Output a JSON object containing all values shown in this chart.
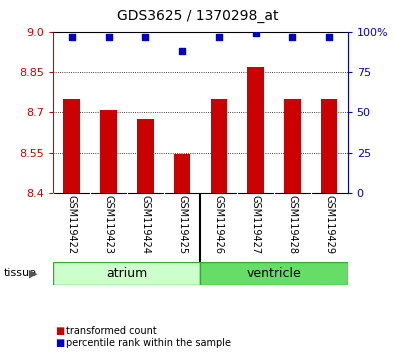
{
  "title": "GDS3625 / 1370298_at",
  "categories": [
    "GSM119422",
    "GSM119423",
    "GSM119424",
    "GSM119425",
    "GSM119426",
    "GSM119427",
    "GSM119428",
    "GSM119429"
  ],
  "bar_values": [
    8.75,
    8.71,
    8.675,
    8.545,
    8.75,
    8.87,
    8.75,
    8.75
  ],
  "percentile_values": [
    97,
    97,
    97,
    88,
    97,
    99,
    97,
    97
  ],
  "ylim_left": [
    8.4,
    9.0
  ],
  "ylim_right": [
    0,
    100
  ],
  "yticks_left": [
    8.4,
    8.55,
    8.7,
    8.85,
    9.0
  ],
  "yticks_right": [
    0,
    25,
    50,
    75,
    100
  ],
  "bar_color": "#cc0000",
  "dot_color": "#0000cc",
  "bar_width": 0.45,
  "base_value": 8.4,
  "grid_color": "#000000",
  "bg_color": "#ffffff",
  "plot_bg_color": "#ffffff",
  "xticklabel_area_color": "#c8c8c8",
  "atrium_color": "#ccffcc",
  "ventricle_color": "#66dd66",
  "tissue_border_color": "#33aa33",
  "legend_items": [
    {
      "label": "transformed count",
      "color": "#cc0000"
    },
    {
      "label": "percentile rank within the sample",
      "color": "#0000cc"
    }
  ],
  "tick_label_color_left": "#cc0000",
  "tick_label_color_right": "#0000cc"
}
